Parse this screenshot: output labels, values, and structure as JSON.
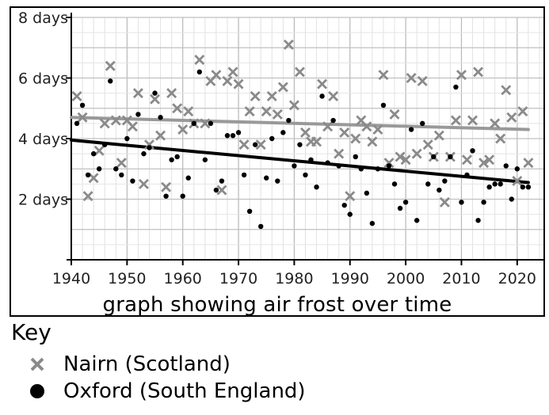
{
  "chart_data": {
    "type": "scatter",
    "title": "graph showing air frost over time",
    "xlabel": "",
    "ylabel": "",
    "xlim": [
      1940,
      2025
    ],
    "ylim": [
      0,
      8
    ],
    "x_ticks": [
      1940,
      1950,
      1960,
      1970,
      1980,
      1990,
      2000,
      2010,
      2020
    ],
    "x_tick_labels": [
      "1940",
      "1950",
      "1960",
      "1970",
      "1980",
      "1990",
      "2000",
      "2010",
      "2020"
    ],
    "y_ticks": [
      2,
      4,
      6,
      8
    ],
    "y_tick_labels": [
      "2 days",
      "4 days",
      "6 days",
      "8 days"
    ],
    "grid": true,
    "legend_title": "Key",
    "legend_position": "below",
    "series": [
      {
        "name": "Nairn (Scotland)",
        "marker": "x",
        "color": "#8a8a8a",
        "trend": {
          "x": [
            1940,
            2022
          ],
          "y": [
            4.7,
            4.3
          ],
          "color": "#999999"
        },
        "x": [
          1941,
          1942,
          1943,
          1944,
          1945,
          1946,
          1947,
          1948,
          1949,
          1950,
          1951,
          1952,
          1953,
          1954,
          1955,
          1956,
          1957,
          1958,
          1959,
          1960,
          1961,
          1962,
          1963,
          1964,
          1965,
          1966,
          1967,
          1968,
          1969,
          1970,
          1971,
          1972,
          1973,
          1974,
          1975,
          1976,
          1977,
          1978,
          1979,
          1980,
          1981,
          1982,
          1983,
          1984,
          1985,
          1986,
          1987,
          1988,
          1989,
          1990,
          1991,
          1992,
          1993,
          1994,
          1995,
          1996,
          1997,
          1998,
          1999,
          2000,
          2001,
          2002,
          2003,
          2004,
          2005,
          2006,
          2007,
          2008,
          2009,
          2010,
          2011,
          2012,
          2013,
          2014,
          2015,
          2016,
          2017,
          2018,
          2019,
          2020,
          2021,
          2022
        ],
        "y": [
          5.4,
          4.7,
          2.1,
          2.7,
          3.6,
          4.5,
          6.4,
          4.6,
          3.2,
          4.6,
          4.4,
          5.5,
          2.5,
          3.8,
          5.3,
          4.1,
          2.4,
          5.5,
          5.0,
          4.3,
          4.9,
          4.5,
          6.6,
          4.5,
          5.9,
          6.1,
          2.3,
          5.9,
          6.2,
          5.8,
          3.8,
          4.9,
          5.4,
          3.8,
          4.9,
          5.4,
          4.8,
          5.7,
          7.1,
          5.1,
          6.2,
          4.2,
          3.9,
          3.9,
          5.8,
          4.4,
          5.4,
          3.5,
          4.2,
          2.1,
          4.0,
          4.6,
          4.4,
          3.9,
          4.3,
          6.1,
          3.2,
          4.8,
          3.4,
          3.3,
          6.0,
          3.5,
          5.9,
          3.8,
          3.4,
          4.1,
          1.9,
          3.4,
          4.6,
          6.1,
          3.3,
          4.6,
          6.2,
          3.2,
          3.3,
          4.5,
          4.0,
          5.6,
          4.7,
          2.6,
          4.9,
          3.2
        ]
      },
      {
        "name": "Oxford (South England)",
        "marker": "circle",
        "color": "#000000",
        "trend": {
          "x": [
            1940,
            2022
          ],
          "y": [
            3.95,
            2.55
          ],
          "color": "#000000"
        },
        "x": [
          1941,
          1942,
          1943,
          1944,
          1945,
          1946,
          1947,
          1948,
          1949,
          1950,
          1951,
          1952,
          1953,
          1954,
          1955,
          1956,
          1957,
          1958,
          1959,
          1960,
          1961,
          1962,
          1963,
          1964,
          1965,
          1966,
          1967,
          1968,
          1969,
          1970,
          1971,
          1972,
          1973,
          1974,
          1975,
          1976,
          1977,
          1978,
          1979,
          1980,
          1981,
          1982,
          1983,
          1984,
          1985,
          1986,
          1987,
          1988,
          1989,
          1990,
          1991,
          1992,
          1993,
          1994,
          1995,
          1996,
          1997,
          1998,
          1999,
          2000,
          2001,
          2002,
          2003,
          2004,
          2005,
          2006,
          2007,
          2008,
          2009,
          2010,
          2011,
          2012,
          2013,
          2014,
          2015,
          2016,
          2017,
          2018,
          2019,
          2020,
          2021,
          2022
        ],
        "y": [
          4.5,
          5.1,
          2.8,
          3.5,
          3.0,
          3.8,
          5.9,
          3.0,
          2.8,
          4.0,
          2.6,
          4.8,
          3.5,
          3.7,
          5.5,
          4.7,
          2.1,
          3.3,
          3.4,
          2.1,
          2.7,
          4.5,
          6.2,
          3.3,
          4.5,
          2.3,
          2.6,
          4.1,
          4.1,
          4.2,
          2.8,
          1.6,
          3.8,
          1.1,
          2.7,
          4.0,
          2.6,
          4.2,
          4.6,
          3.1,
          3.8,
          2.8,
          3.3,
          2.4,
          5.4,
          3.2,
          4.6,
          3.1,
          1.8,
          1.5,
          3.4,
          3.0,
          2.2,
          1.2,
          3.0,
          5.1,
          3.1,
          2.5,
          1.7,
          1.9,
          4.3,
          1.3,
          4.5,
          2.5,
          3.4,
          2.3,
          2.6,
          3.4,
          5.7,
          1.9,
          2.8,
          3.6,
          1.3,
          1.9,
          2.4,
          2.5,
          2.5,
          3.1,
          2.0,
          3.0,
          2.4,
          2.4
        ]
      }
    ]
  }
}
